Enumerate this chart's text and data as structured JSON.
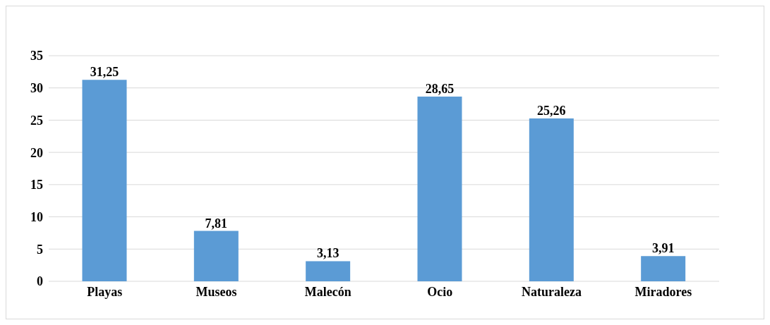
{
  "chart_data": {
    "type": "bar",
    "categories": [
      "Playas",
      "Museos",
      "Malecón",
      "Ocio",
      "Naturaleza",
      "Miradores"
    ],
    "values": [
      31.25,
      7.81,
      3.13,
      28.65,
      25.26,
      3.91
    ],
    "value_labels": [
      "31,25",
      "7,81",
      "3,13",
      "28,65",
      "25,26",
      "3,91"
    ],
    "color": "#5b9bd5",
    "ylim": [
      0,
      35
    ],
    "yticks": [
      0,
      5,
      10,
      15,
      20,
      25,
      30,
      35
    ],
    "grid": "y"
  }
}
